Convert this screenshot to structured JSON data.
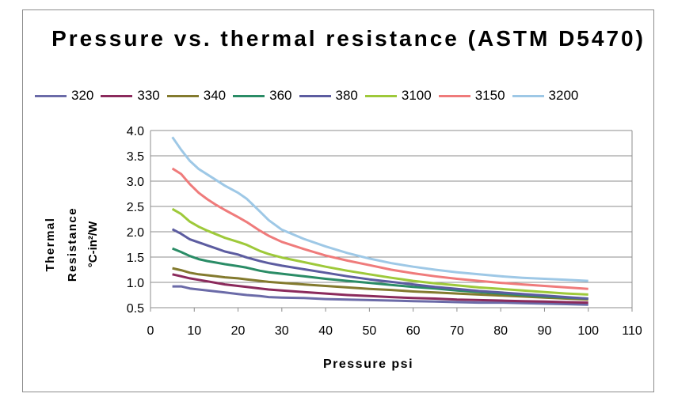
{
  "chart_data": {
    "type": "line",
    "title": "Pressure vs. thermal resistance (ASTM D5470)",
    "xlabel": "Pressure psi",
    "ylabel_lines": [
      "Thermal",
      "Resistance",
      "°C-in²/W"
    ],
    "xlim": [
      0,
      110
    ],
    "ylim": [
      0.5,
      4.0
    ],
    "x_ticks": [
      "0",
      "10",
      "20",
      "30",
      "40",
      "50",
      "60",
      "70",
      "80",
      "90",
      "100",
      "110"
    ],
    "y_ticks": [
      "4.0",
      "3.5",
      "3.0",
      "2.5",
      "2.0",
      "1.5",
      "1.0",
      "0.5"
    ],
    "grid": "horizontal",
    "legend_position": "top",
    "x": [
      5,
      7,
      9,
      11,
      13,
      15,
      17,
      20,
      22,
      25,
      27,
      30,
      35,
      40,
      45,
      50,
      55,
      60,
      65,
      70,
      75,
      80,
      85,
      90,
      95,
      100
    ],
    "series": [
      {
        "name": "320",
        "color": "#6b6ba8",
        "values": [
          0.92,
          0.92,
          0.88,
          0.86,
          0.84,
          0.82,
          0.8,
          0.77,
          0.75,
          0.73,
          0.71,
          0.7,
          0.69,
          0.67,
          0.66,
          0.65,
          0.64,
          0.63,
          0.62,
          0.61,
          0.6,
          0.6,
          0.59,
          0.58,
          0.57,
          0.56
        ]
      },
      {
        "name": "330",
        "color": "#8b2a5c",
        "values": [
          1.16,
          1.12,
          1.08,
          1.05,
          1.02,
          0.99,
          0.96,
          0.93,
          0.91,
          0.88,
          0.86,
          0.84,
          0.81,
          0.78,
          0.75,
          0.73,
          0.71,
          0.69,
          0.68,
          0.66,
          0.65,
          0.64,
          0.63,
          0.62,
          0.61,
          0.6
        ]
      },
      {
        "name": "340",
        "color": "#837a2e",
        "values": [
          1.28,
          1.24,
          1.19,
          1.16,
          1.14,
          1.12,
          1.1,
          1.08,
          1.06,
          1.03,
          1.01,
          0.99,
          0.96,
          0.93,
          0.9,
          0.87,
          0.85,
          0.82,
          0.8,
          0.78,
          0.76,
          0.74,
          0.72,
          0.7,
          0.68,
          0.66
        ]
      },
      {
        "name": "360",
        "color": "#2a8c66",
        "values": [
          1.67,
          1.6,
          1.52,
          1.46,
          1.42,
          1.39,
          1.36,
          1.32,
          1.29,
          1.23,
          1.2,
          1.17,
          1.12,
          1.07,
          1.03,
          0.99,
          0.95,
          0.91,
          0.88,
          0.84,
          0.81,
          0.78,
          0.75,
          0.72,
          0.7,
          0.68
        ]
      },
      {
        "name": "380",
        "color": "#5c5ca0",
        "values": [
          2.05,
          1.96,
          1.85,
          1.79,
          1.73,
          1.67,
          1.61,
          1.55,
          1.49,
          1.42,
          1.38,
          1.33,
          1.26,
          1.19,
          1.12,
          1.06,
          1.01,
          0.96,
          0.91,
          0.87,
          0.83,
          0.8,
          0.77,
          0.74,
          0.71,
          0.68
        ]
      },
      {
        "name": "3100",
        "color": "#9ec93a",
        "values": [
          2.45,
          2.35,
          2.2,
          2.1,
          2.02,
          1.95,
          1.88,
          1.8,
          1.74,
          1.62,
          1.56,
          1.49,
          1.4,
          1.31,
          1.23,
          1.16,
          1.09,
          1.03,
          0.98,
          0.94,
          0.9,
          0.87,
          0.84,
          0.81,
          0.78,
          0.76
        ]
      },
      {
        "name": "3150",
        "color": "#ef7b7b",
        "values": [
          3.25,
          3.14,
          2.94,
          2.77,
          2.64,
          2.53,
          2.43,
          2.29,
          2.19,
          2.02,
          1.92,
          1.8,
          1.66,
          1.53,
          1.43,
          1.34,
          1.25,
          1.18,
          1.12,
          1.07,
          1.03,
          0.99,
          0.96,
          0.93,
          0.9,
          0.87
        ]
      },
      {
        "name": "3200",
        "color": "#9ec8e6",
        "values": [
          3.87,
          3.62,
          3.4,
          3.24,
          3.13,
          3.02,
          2.91,
          2.77,
          2.65,
          2.4,
          2.23,
          2.04,
          1.86,
          1.71,
          1.58,
          1.47,
          1.38,
          1.31,
          1.25,
          1.2,
          1.16,
          1.12,
          1.09,
          1.07,
          1.05,
          1.03
        ]
      }
    ]
  }
}
